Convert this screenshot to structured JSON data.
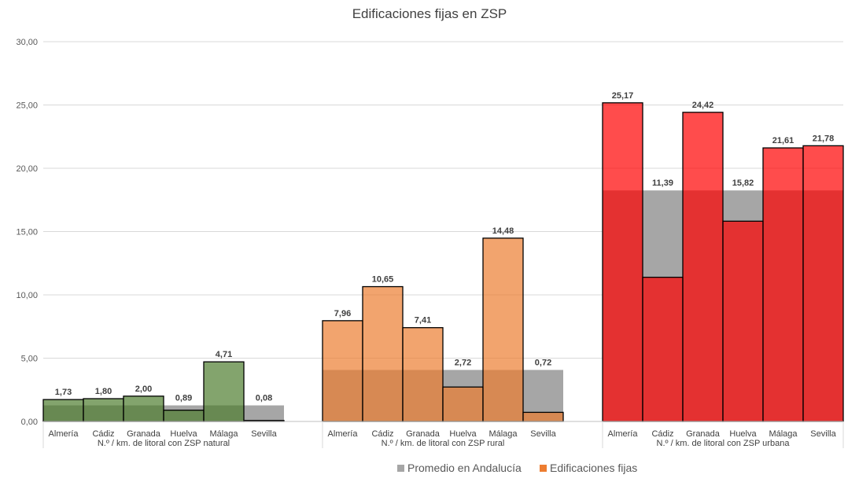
{
  "chart_data": {
    "type": "bar",
    "title": "Edificaciones fijas en ZSP",
    "ylim": [
      0,
      30
    ],
    "yticks": [
      "0,00",
      "5,00",
      "10,00",
      "15,00",
      "20,00",
      "25,00",
      "30,00"
    ],
    "grid": true,
    "legend_position": "bottom",
    "categories": [
      "Almería",
      "Cádiz",
      "Granada",
      "Huelva",
      "Málaga",
      "Sevilla"
    ],
    "groups": [
      {
        "label": "N.º / km. de litoral con ZSP natural",
        "values": [
          1.73,
          1.8,
          2.0,
          0.89,
          4.71,
          0.08
        ],
        "value_labels": [
          "1,73",
          "1,80",
          "2,00",
          "0,89",
          "4,71",
          "0,08"
        ],
        "average": 1.27,
        "color": "#4e7d2f"
      },
      {
        "label": "N.º / km. de litoral con ZSP rural",
        "values": [
          7.96,
          10.65,
          7.41,
          2.72,
          14.48,
          0.72
        ],
        "value_labels": [
          "7,96",
          "10,65",
          "7,41",
          "2,72",
          "14,48",
          "0,72"
        ],
        "average": 4.07,
        "color": "#ed7d31"
      },
      {
        "label": "N.º / km. de litoral con ZSP urbana",
        "values": [
          25.17,
          11.39,
          24.42,
          15.82,
          21.61,
          21.78
        ],
        "value_labels": [
          "25,17",
          "11,39",
          "24,42",
          "15,82",
          "21,61",
          "21,78"
        ],
        "average": 18.25,
        "color": "#ff0000"
      }
    ],
    "series": [
      {
        "name": "Promedio en Andalucía",
        "color": "#a6a6a6"
      },
      {
        "name": "Edificaciones fijas",
        "color": "#ed7d31"
      }
    ]
  }
}
